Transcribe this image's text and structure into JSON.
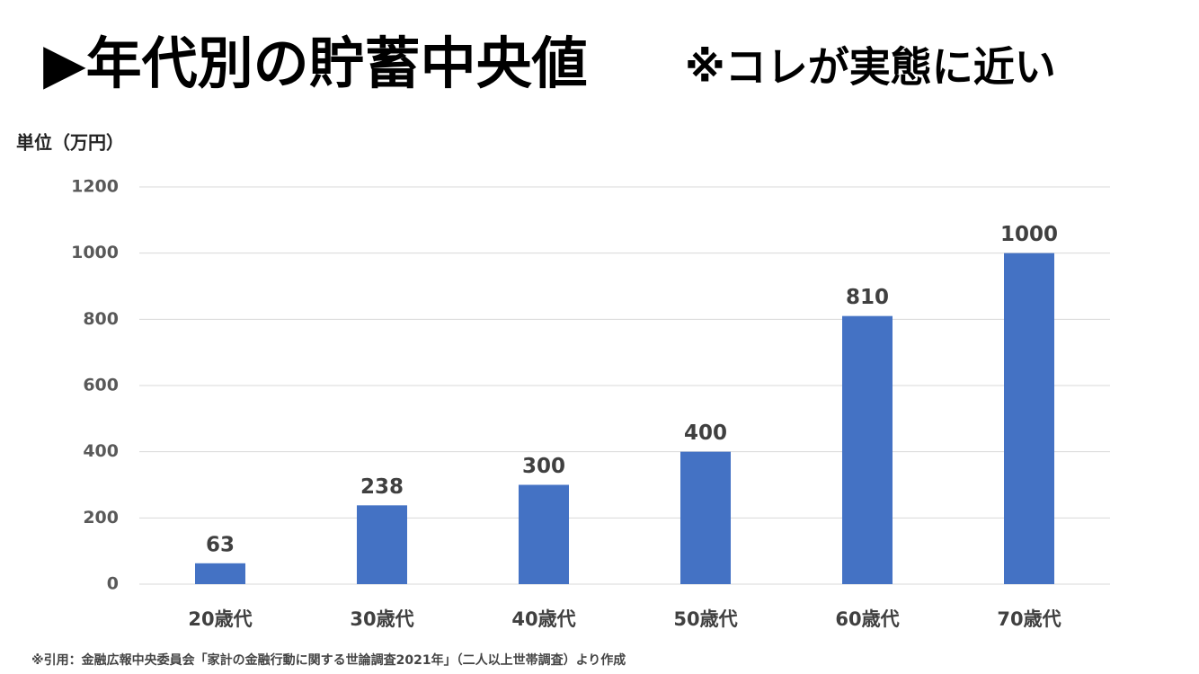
{
  "chart_data": {
    "type": "bar",
    "title": "▶年代別の貯蓄中央値",
    "subtitle": "※コレが実態に近い",
    "y_axis_label": "単位（万円）",
    "source": "※引用：金融広報中央委員会「家計の金融行動に関する世論調査2021年」（二人以上世帯調査）より作成",
    "categories": [
      "20歳代",
      "30歳代",
      "40歳代",
      "50歳代",
      "60歳代",
      "70歳代"
    ],
    "values": [
      63,
      238,
      300,
      400,
      810,
      1000
    ],
    "color": "#4472c4",
    "ylim": [
      0,
      1200
    ],
    "yticks": [
      0,
      200,
      400,
      600,
      800,
      1000,
      1200
    ],
    "grid": true
  }
}
